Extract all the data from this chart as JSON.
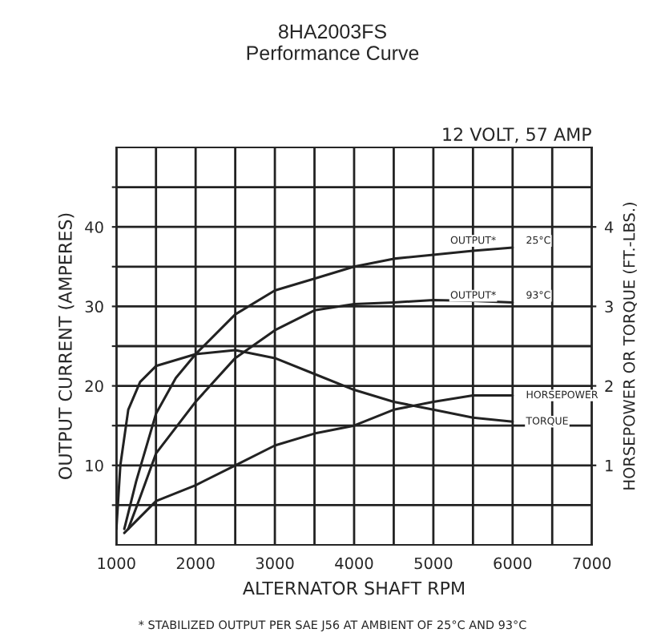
{
  "chart_data": {
    "type": "line",
    "title": "8HA2003FS\nPerformance Curve",
    "subtitle": "12 VOLT, 57 AMP",
    "xlabel": "ALTERNATOR SHAFT RPM",
    "ylabel": "OUTPUT CURRENT (AMPERES)",
    "y2label": "HORSEPOWER OR TORQUE (FT.-LBS.)",
    "xlim": [
      1000,
      7000
    ],
    "xticks": [
      1000,
      {
        "value": 1500,
        "label": null
      },
      2000,
      {
        "value": 2500,
        "label": null
      },
      3000,
      {
        "value": 3500,
        "label": null
      },
      4000,
      {
        "value": 4500,
        "label": null
      },
      5000,
      {
        "value": 5500,
        "label": null
      },
      6000,
      {
        "value": 6500,
        "label": null
      },
      7000
    ],
    "ylim": [
      0,
      50
    ],
    "yticks": [
      {
        "value": 5,
        "label": null
      },
      10,
      {
        "value": 15,
        "label": null
      },
      20,
      {
        "value": 25,
        "label": null
      },
      30,
      {
        "value": 35,
        "label": null
      },
      40,
      {
        "value": 45,
        "label": null
      }
    ],
    "y2lim": [
      0,
      5
    ],
    "y2ticks": [
      1,
      2,
      3,
      4
    ],
    "grid": true,
    "legend": false,
    "series": [
      {
        "name": "OUTPUT*",
        "color": "#222222",
        "x": [
          1100,
          1250,
          1500,
          1750,
          2000,
          2500,
          3000,
          3500,
          4000,
          4500,
          5000,
          5500,
          6000
        ],
        "values": [
          2,
          8,
          16.5,
          21,
          24,
          29,
          32,
          33.5,
          35,
          36,
          36.5,
          37,
          37.4
        ]
      },
      {
        "name": "OUTPUT*",
        "color": "#222222",
        "x": [
          1150,
          1300,
          1500,
          2000,
          2500,
          3000,
          3500,
          4000,
          4500,
          5000,
          5500,
          6000
        ],
        "values": [
          2,
          6,
          11.5,
          18,
          23.5,
          27,
          29.5,
          30.3,
          30.5,
          30.8,
          30.7,
          30.5
        ]
      },
      {
        "name": "HORSEPOWER",
        "color": "#222222",
        "axis": "y2",
        "x": [
          1100,
          1500,
          2000,
          2500,
          3000,
          3500,
          4000,
          4500,
          5000,
          5500,
          6000
        ],
        "values": [
          0.15,
          0.55,
          0.75,
          1.0,
          1.25,
          1.4,
          1.5,
          1.7,
          1.8,
          1.88,
          1.88
        ]
      },
      {
        "name": "TORQUE",
        "color": "#222222",
        "axis": "y2",
        "x": [
          1000,
          1050,
          1150,
          1300,
          1500,
          2000,
          2500,
          3000,
          3500,
          4000,
          4500,
          5000,
          5500,
          6000
        ],
        "values": [
          0.2,
          1.0,
          1.7,
          2.05,
          2.25,
          2.4,
          2.45,
          2.35,
          2.15,
          1.95,
          1.8,
          1.7,
          1.6,
          1.55
        ]
      }
    ],
    "annotations": [
      "25°C",
      "93°C",
      "* STABILIZED OUTPUT PER SAE J56 AT AMBIENT OF 25°C AND 93°C"
    ]
  }
}
